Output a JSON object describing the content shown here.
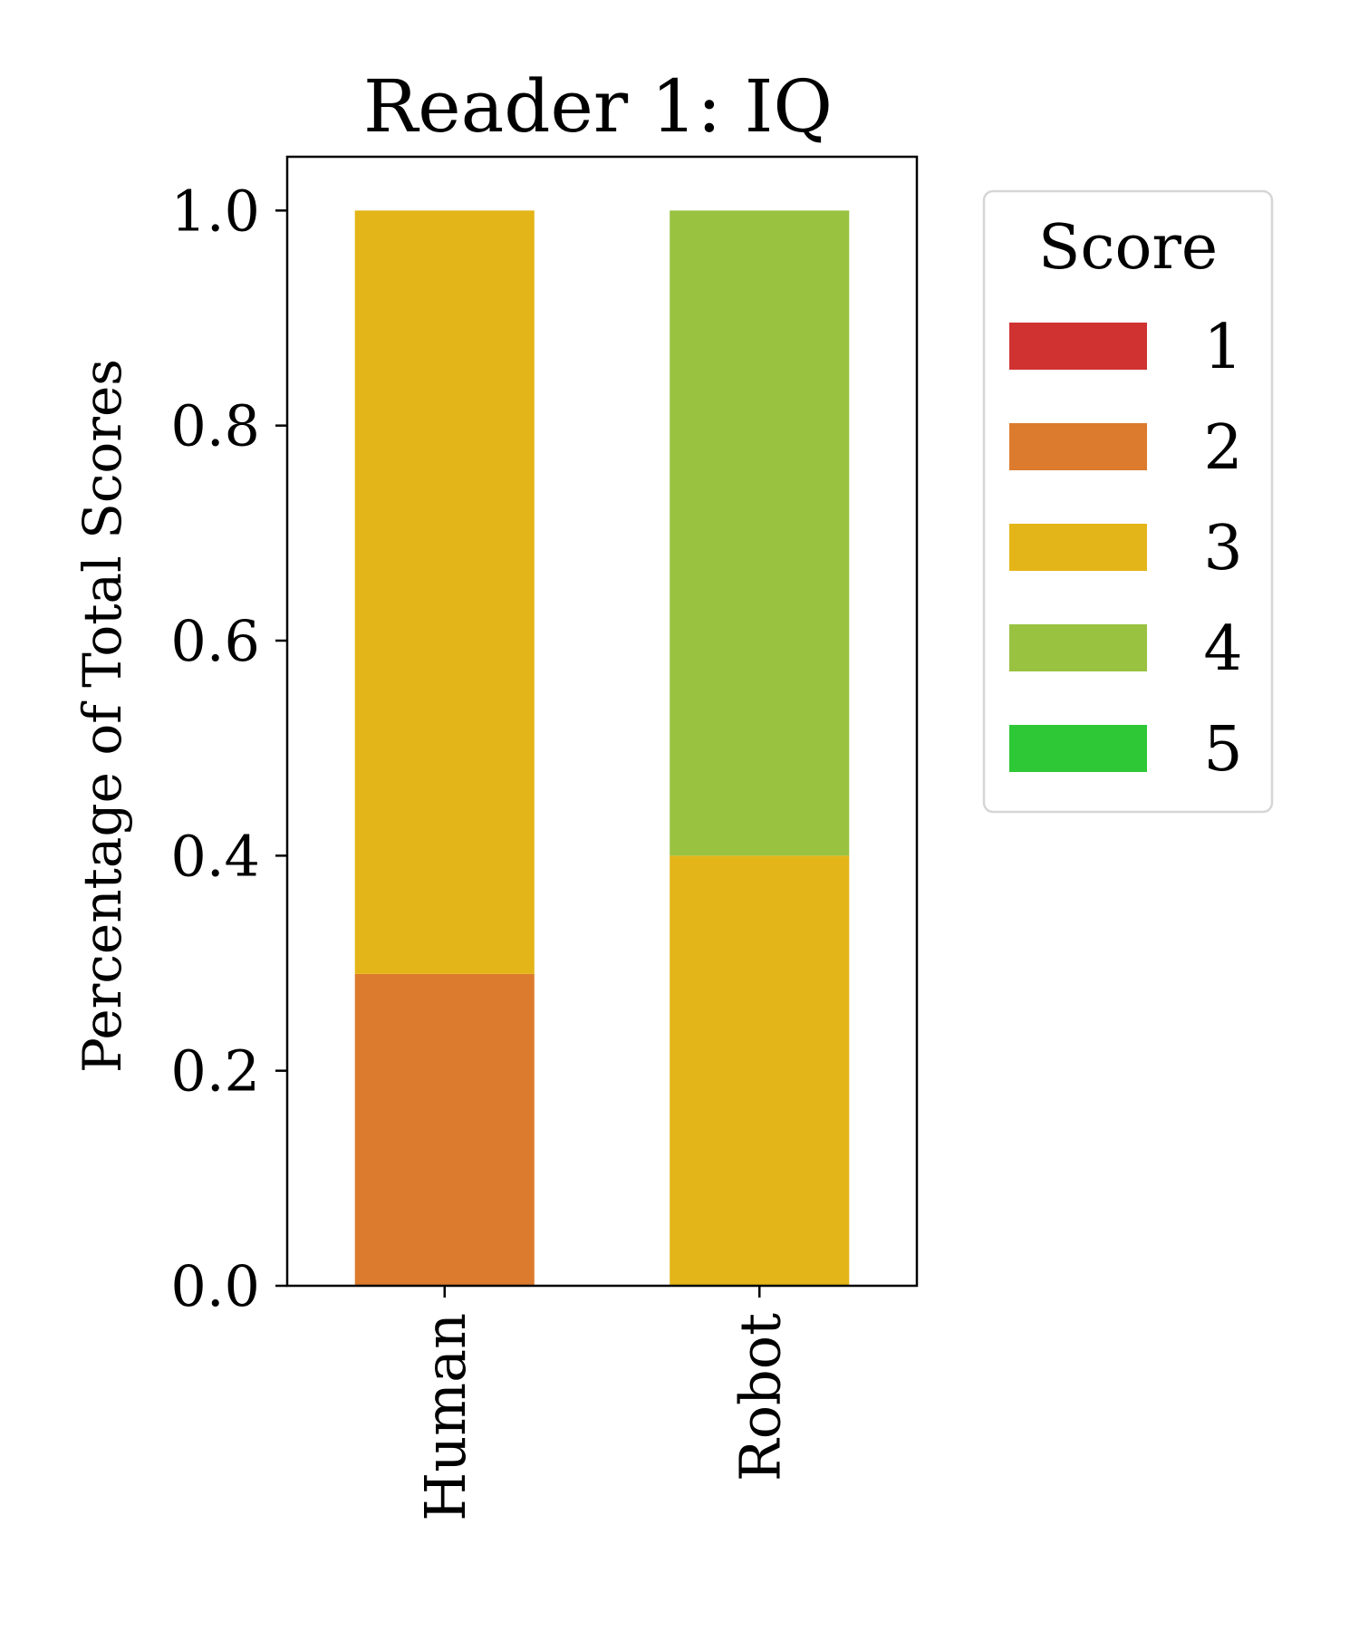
{
  "chart_data": {
    "type": "bar",
    "stacked": true,
    "title": "Reader 1: IQ",
    "ylabel": "Percentage of Total Scores",
    "xlabel": "",
    "categories": [
      "Human",
      "Robot"
    ],
    "ylim": [
      0,
      1.05
    ],
    "yticks": [
      0.0,
      0.2,
      0.4,
      0.6,
      0.8,
      1.0
    ],
    "ytick_labels": [
      "0.0",
      "0.2",
      "0.4",
      "0.6",
      "0.8",
      "1.0"
    ],
    "grid": false,
    "legend": {
      "title": "Score",
      "placement": "outside right, top"
    },
    "series": [
      {
        "name": "1",
        "color": "#d03232",
        "values": [
          0.0,
          0.0
        ]
      },
      {
        "name": "2",
        "color": "#dc7b2e",
        "values": [
          0.29,
          0.0
        ]
      },
      {
        "name": "3",
        "color": "#e4b518",
        "values": [
          0.71,
          0.4
        ]
      },
      {
        "name": "4",
        "color": "#99c241",
        "values": [
          0.0,
          0.6
        ]
      },
      {
        "name": "5",
        "color": "#2ec837",
        "values": [
          0.0,
          0.0
        ]
      }
    ]
  }
}
